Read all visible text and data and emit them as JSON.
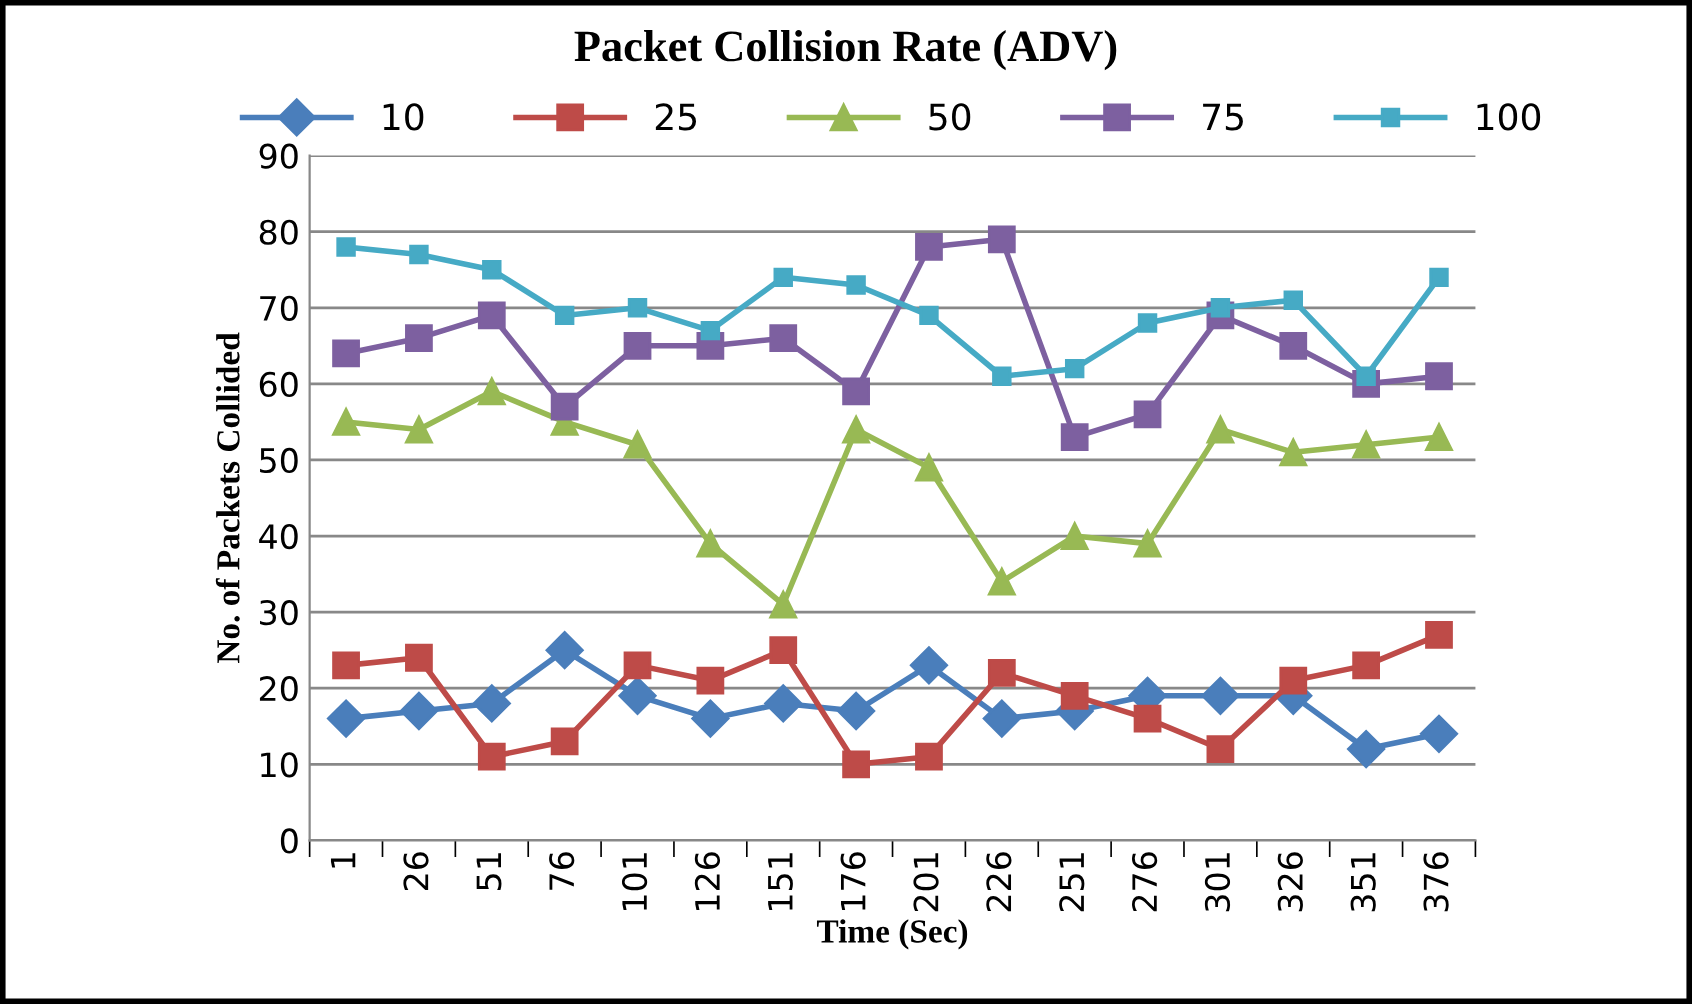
{
  "chart_data": {
    "type": "line",
    "title": "Packet Collision Rate (ADV)",
    "xlabel": "Time (Sec)",
    "ylabel": "No. of Packets Collided",
    "categories": [
      "1",
      "26",
      "51",
      "76",
      "101",
      "126",
      "151",
      "176",
      "201",
      "226",
      "251",
      "276",
      "301",
      "326",
      "351",
      "376"
    ],
    "series": [
      {
        "name": "10",
        "color": "#4a7ebb",
        "marker": "diamond",
        "values": [
          16,
          17,
          18,
          25,
          19,
          16,
          18,
          17,
          23,
          16,
          17,
          19,
          19,
          19,
          12,
          14
        ]
      },
      {
        "name": "25",
        "color": "#be4b48",
        "marker": "square",
        "values": [
          23,
          24,
          11,
          13,
          23,
          21,
          25,
          10,
          11,
          22,
          19,
          16,
          12,
          21,
          23,
          27
        ]
      },
      {
        "name": "50",
        "color": "#98b954",
        "marker": "triangle",
        "values": [
          55,
          54,
          59,
          55,
          52,
          39,
          31,
          54,
          49,
          34,
          40,
          39,
          54,
          51,
          52,
          53
        ]
      },
      {
        "name": "75",
        "color": "#7d60a0",
        "marker": "square",
        "values": [
          64,
          66,
          69,
          57,
          65,
          65,
          66,
          59,
          78,
          79,
          53,
          56,
          69,
          65,
          60,
          61
        ]
      },
      {
        "name": "100",
        "color": "#46aac5",
        "marker": "square",
        "values": [
          78,
          77,
          75,
          69,
          70,
          67,
          74,
          73,
          69,
          61,
          62,
          68,
          70,
          71,
          61,
          74
        ]
      }
    ],
    "ylim": [
      0,
      90
    ],
    "yticks": [
      0,
      10,
      20,
      30,
      40,
      50,
      60,
      70,
      80,
      90
    ],
    "grid": "y",
    "legend": "top",
    "line_style": "solid"
  }
}
